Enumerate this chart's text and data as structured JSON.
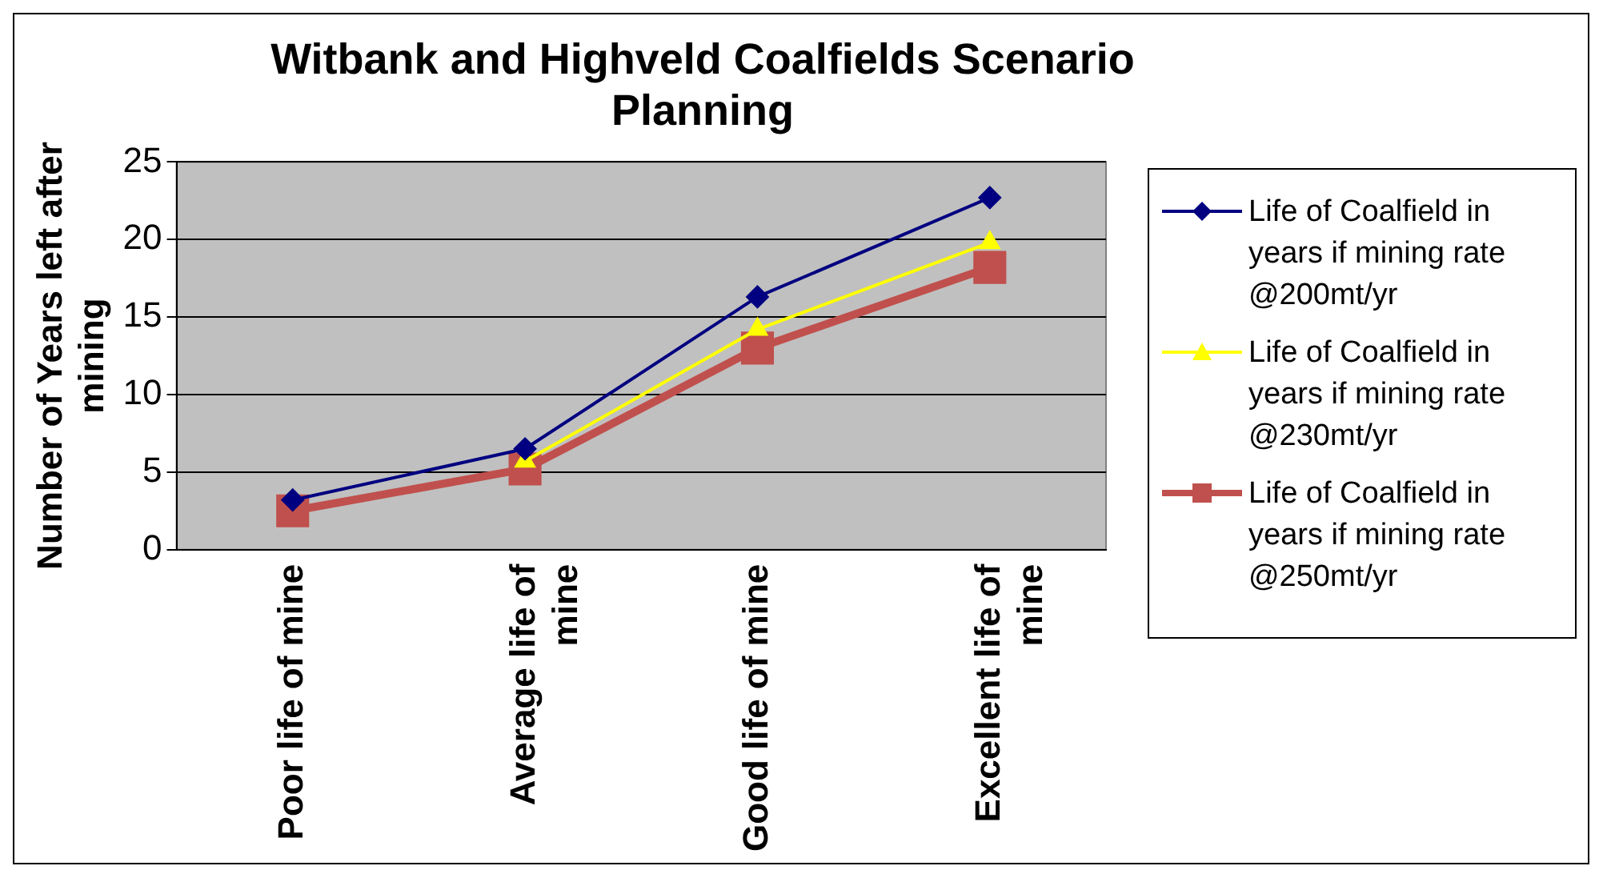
{
  "chart_data": {
    "type": "line",
    "title": "Witbank and Highveld Coalfields Scenario Planning",
    "ylabel": "Number of Years left after mining",
    "categories": [
      "Poor life of mine",
      "Average life of mine",
      "Good life of mine",
      "Excellent life of mine"
    ],
    "series": [
      {
        "name": "Life of Coalfield in years if mining rate @200mt/yr",
        "color": "#000080",
        "marker": "diamond",
        "values": [
          3.2,
          6.5,
          16.3,
          22.7
        ]
      },
      {
        "name": "Life of Coalfield in years if mining rate @230mt/yr",
        "color": "#ffff00",
        "marker": "triangle",
        "values": [
          null,
          5.7,
          14.2,
          19.8
        ]
      },
      {
        "name": "Life of Coalfield in years if mining rate @250mt/yr",
        "color": "#c0504d",
        "marker": "square",
        "values": [
          2.5,
          5.2,
          13.0,
          18.2
        ]
      }
    ],
    "ylim": [
      0,
      25
    ],
    "yticks": [
      0,
      5,
      10,
      15,
      20,
      25
    ],
    "grid": "y",
    "legend": "right"
  }
}
